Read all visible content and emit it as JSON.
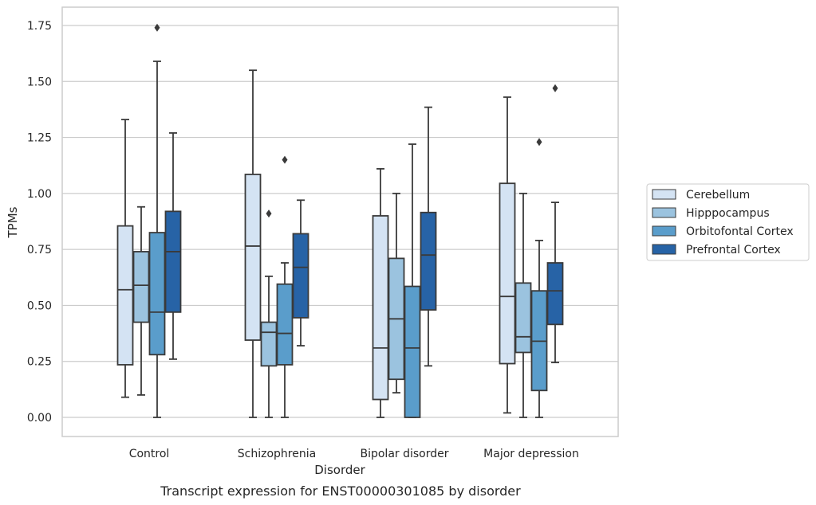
{
  "caption": "Transcript expression for ENST00000301085 by disorder",
  "chart_data": {
    "type": "box",
    "xlabel": "Disorder",
    "ylabel": "TPMs",
    "ylim": [
      -0.08,
      1.83
    ],
    "yticks": [
      0.0,
      0.25,
      0.5,
      0.75,
      1.0,
      1.25,
      1.5,
      1.75
    ],
    "ytick_labels": [
      "0.00",
      "0.25",
      "0.50",
      "0.75",
      "1.00",
      "1.25",
      "1.50",
      "1.75"
    ],
    "grid": "horizontal",
    "legend_position": "right",
    "categories": [
      "Control",
      "Schizophrenia",
      "Bipolar disorder",
      "Major depression"
    ],
    "series": [
      {
        "name": "Cerebellum",
        "color": "#d4e3f3",
        "boxes": [
          {
            "whisker_low": 0.09,
            "q1": 0.235,
            "median": 0.57,
            "q3": 0.855,
            "whisker_high": 1.33,
            "outliers": []
          },
          {
            "whisker_low": 0.0,
            "q1": 0.345,
            "median": 0.765,
            "q3": 1.085,
            "whisker_high": 1.55,
            "outliers": []
          },
          {
            "whisker_low": 0.0,
            "q1": 0.08,
            "median": 0.31,
            "q3": 0.9,
            "whisker_high": 1.11,
            "outliers": []
          },
          {
            "whisker_low": 0.02,
            "q1": 0.24,
            "median": 0.54,
            "q3": 1.045,
            "whisker_high": 1.43,
            "outliers": []
          }
        ]
      },
      {
        "name": "Hipppocampus",
        "color": "#9bc3df",
        "boxes": [
          {
            "whisker_low": 0.1,
            "q1": 0.425,
            "median": 0.59,
            "q3": 0.74,
            "whisker_high": 0.94,
            "outliers": []
          },
          {
            "whisker_low": 0.0,
            "q1": 0.23,
            "median": 0.38,
            "q3": 0.425,
            "whisker_high": 0.63,
            "outliers": [
              0.91
            ]
          },
          {
            "whisker_low": 0.11,
            "q1": 0.17,
            "median": 0.44,
            "q3": 0.71,
            "whisker_high": 1.0,
            "outliers": []
          },
          {
            "whisker_low": 0.0,
            "q1": 0.29,
            "median": 0.36,
            "q3": 0.6,
            "whisker_high": 1.0,
            "outliers": []
          }
        ]
      },
      {
        "name": "Orbitofontal Cortex",
        "color": "#5a9dcb",
        "boxes": [
          {
            "whisker_low": 0.0,
            "q1": 0.28,
            "median": 0.47,
            "q3": 0.825,
            "whisker_high": 1.59,
            "outliers": [
              1.74
            ]
          },
          {
            "whisker_low": 0.0,
            "q1": 0.235,
            "median": 0.375,
            "q3": 0.595,
            "whisker_high": 0.69,
            "outliers": [
              1.15
            ]
          },
          {
            "whisker_low": 0.0,
            "q1": 0.0,
            "median": 0.31,
            "q3": 0.585,
            "whisker_high": 1.22,
            "outliers": []
          },
          {
            "whisker_low": 0.0,
            "q1": 0.12,
            "median": 0.34,
            "q3": 0.565,
            "whisker_high": 0.79,
            "outliers": [
              1.23
            ]
          }
        ]
      },
      {
        "name": "Prefrontal Cortex",
        "color": "#2763a6",
        "boxes": [
          {
            "whisker_low": 0.26,
            "q1": 0.47,
            "median": 0.74,
            "q3": 0.92,
            "whisker_high": 1.27,
            "outliers": []
          },
          {
            "whisker_low": 0.32,
            "q1": 0.445,
            "median": 0.67,
            "q3": 0.82,
            "whisker_high": 0.97,
            "outliers": []
          },
          {
            "whisker_low": 0.23,
            "q1": 0.48,
            "median": 0.725,
            "q3": 0.915,
            "whisker_high": 1.385,
            "outliers": []
          },
          {
            "whisker_low": 0.245,
            "q1": 0.415,
            "median": 0.565,
            "q3": 0.69,
            "whisker_high": 0.96,
            "outliers": [
              1.47
            ]
          }
        ]
      }
    ]
  },
  "colors": {
    "grid": "#cccccc",
    "frame": "#cccccc",
    "box_edge": "#3a3a3a",
    "text": "#262626"
  }
}
